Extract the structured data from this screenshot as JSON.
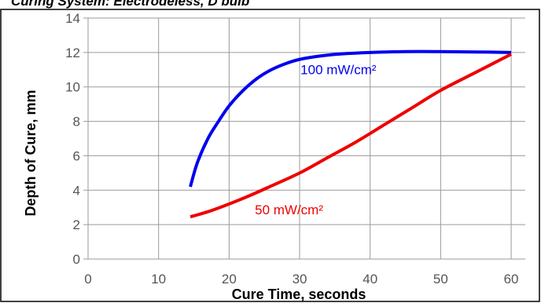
{
  "chart_data": {
    "type": "line",
    "title": "Curing System: Electrodeless, D bulb",
    "xlabel": "Cure Time, seconds",
    "ylabel": "Depth of Cure, mm",
    "xlim": [
      0,
      62
    ],
    "ylim": [
      0,
      14
    ],
    "xticks": [
      0,
      10,
      20,
      30,
      40,
      50,
      60
    ],
    "yticks": [
      0,
      2,
      4,
      6,
      8,
      10,
      12,
      14
    ],
    "grid": true,
    "series": [
      {
        "name": "100 mW/cm²",
        "color": "#0000ee",
        "x": [
          14.5,
          15.5,
          17,
          18.5,
          20,
          22,
          24,
          26,
          28,
          30,
          33,
          36,
          40,
          45,
          50,
          55,
          60
        ],
        "y": [
          4.2,
          5.6,
          7.0,
          8.0,
          8.9,
          9.8,
          10.5,
          11.0,
          11.35,
          11.6,
          11.8,
          11.92,
          12.0,
          12.05,
          12.05,
          12.03,
          12.0
        ]
      },
      {
        "name": "50 mW/cm²",
        "color": "#ee0000",
        "x": [
          14.5,
          17,
          20,
          23,
          26,
          30,
          34,
          38,
          42,
          46,
          50,
          55,
          60
        ],
        "y": [
          2.45,
          2.75,
          3.2,
          3.7,
          4.25,
          5.0,
          5.9,
          6.8,
          7.8,
          8.8,
          9.8,
          10.85,
          11.9
        ]
      }
    ]
  }
}
